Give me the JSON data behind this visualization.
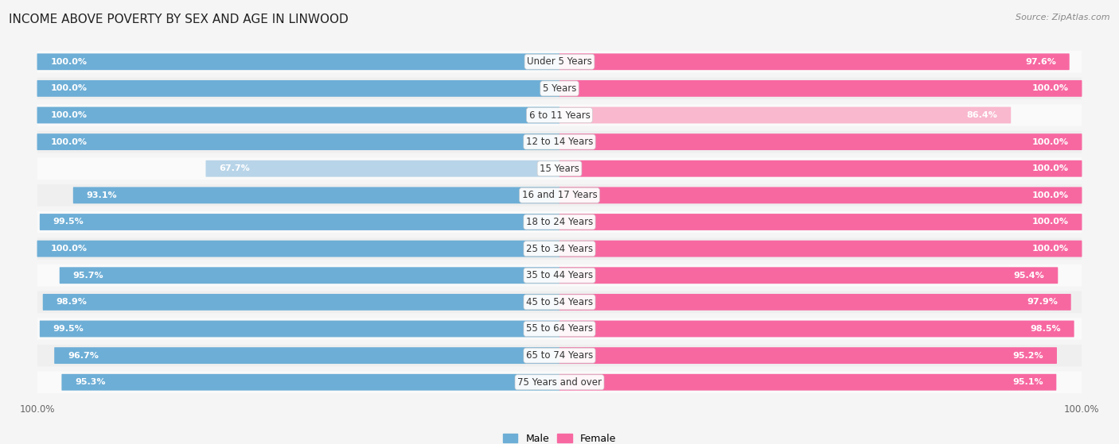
{
  "title": "INCOME ABOVE POVERTY BY SEX AND AGE IN LINWOOD",
  "source": "Source: ZipAtlas.com",
  "categories": [
    "Under 5 Years",
    "5 Years",
    "6 to 11 Years",
    "12 to 14 Years",
    "15 Years",
    "16 and 17 Years",
    "18 to 24 Years",
    "25 to 34 Years",
    "35 to 44 Years",
    "45 to 54 Years",
    "55 to 64 Years",
    "65 to 74 Years",
    "75 Years and over"
  ],
  "male_values": [
    100.0,
    100.0,
    100.0,
    100.0,
    67.7,
    93.1,
    99.5,
    100.0,
    95.7,
    98.9,
    99.5,
    96.7,
    95.3
  ],
  "female_values": [
    97.6,
    100.0,
    86.4,
    100.0,
    100.0,
    100.0,
    100.0,
    100.0,
    95.4,
    97.9,
    98.5,
    95.2,
    95.1
  ],
  "male_color": "#6daed6",
  "female_color": "#f768a1",
  "male_color_light": "#b8d4e8",
  "female_color_light": "#f9b8ce",
  "row_bg_odd": "#efefef",
  "row_bg_even": "#fafafa",
  "background_color": "#f5f5f5",
  "title_fontsize": 11,
  "label_fontsize": 8.5,
  "tick_fontsize": 8.5,
  "legend_fontsize": 9,
  "value_fontsize": 8.0
}
